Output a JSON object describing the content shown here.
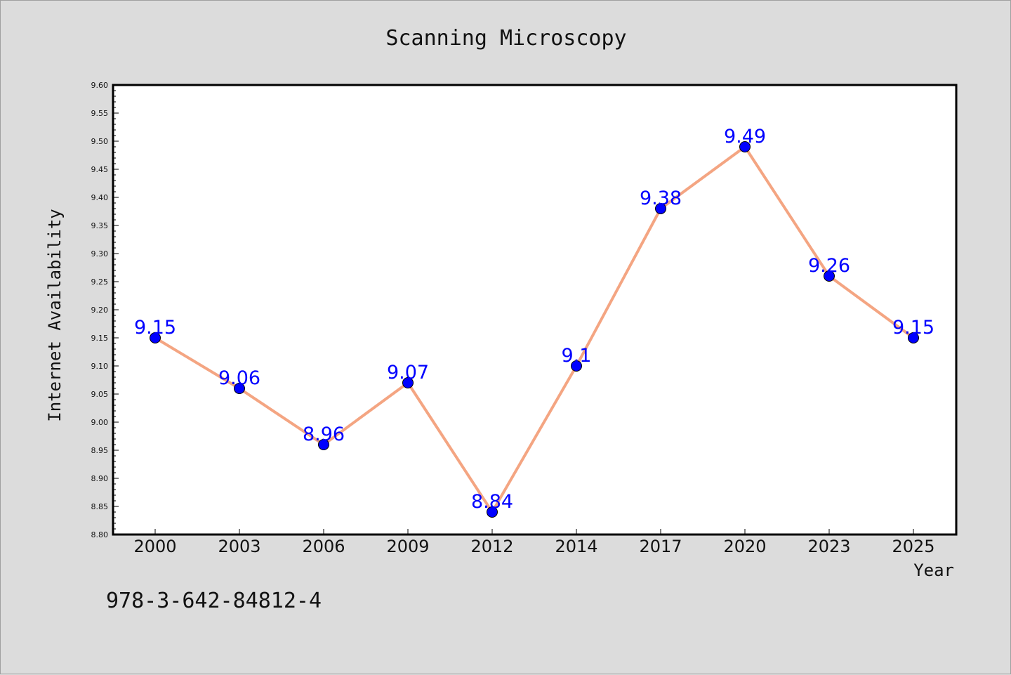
{
  "chart_data": {
    "type": "line",
    "title": "Scanning Microscopy",
    "xlabel": "Year",
    "ylabel": "Internet Availability",
    "categories": [
      "2000",
      "2003",
      "2006",
      "2009",
      "2012",
      "2014",
      "2017",
      "2020",
      "2023",
      "2025"
    ],
    "series": [
      {
        "values": [
          9.15,
          9.06,
          8.96,
          9.07,
          8.84,
          9.1,
          9.38,
          9.49,
          9.26,
          9.15
        ],
        "labels": [
          "9.15",
          "9.06",
          "8.96",
          "9.07",
          "8.84",
          "9.1",
          "9.38",
          "9.49",
          "9.26",
          "9.15"
        ],
        "line_color": "#f4a582",
        "marker_color": "#0000ff"
      }
    ],
    "ylim": [
      8.8,
      9.6
    ],
    "yticks": [
      "8.80",
      "8.85",
      "8.90",
      "8.95",
      "9.00",
      "9.05",
      "9.10",
      "9.15",
      "9.20",
      "9.25",
      "9.30",
      "9.35",
      "9.40",
      "9.45",
      "9.50",
      "9.55",
      "9.60"
    ],
    "grid": false,
    "legend": "none"
  },
  "footer": {
    "isbn": "978-3-642-84812-4"
  },
  "colors": {
    "background": "#dcdcdc",
    "plot_background": "#ffffff",
    "label_color": "#0000ff"
  }
}
